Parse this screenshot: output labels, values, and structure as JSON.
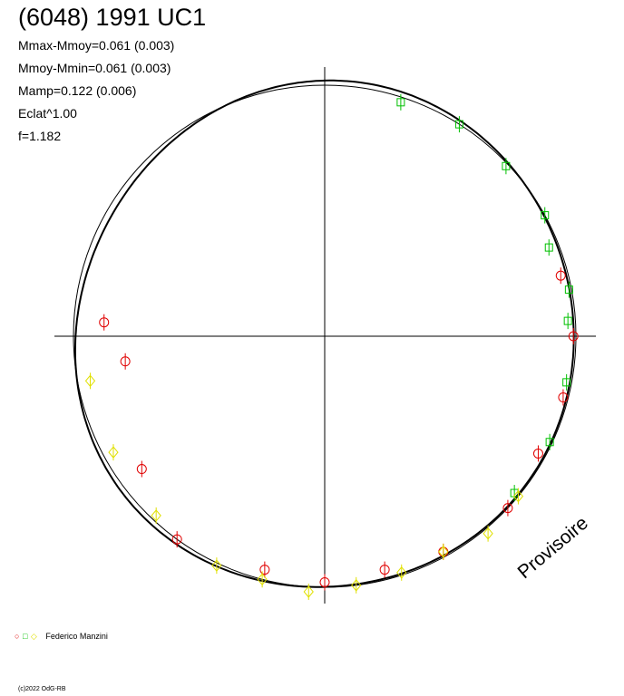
{
  "header": {
    "title": "(6048) 1991 UC1",
    "stats": [
      "Mmax-Mmoy=0.061 (0.003)",
      "Mmoy-Mmin=0.061 (0.003)",
      "Mamp=0.122 (0.006)",
      "Eclat^1.00",
      "f=1.182"
    ]
  },
  "watermark": "Provisoire",
  "legend": {
    "symbols": [
      "○",
      "□",
      "◇"
    ],
    "author": "Federico Manzini"
  },
  "footer": {
    "copyright": "(c)2022 OdG-RB"
  },
  "colors": {
    "red": "#e00000",
    "green": "#00c000",
    "yellow": "#ffff00",
    "axis": "#000000"
  },
  "chart_data": {
    "type": "scatter",
    "plot_kind": "polar phased lightcurve",
    "grid": false,
    "frequency": 1.182,
    "amplitude": 0.122,
    "series": [
      {
        "symbol": "circle",
        "color": "red",
        "points": [
          [
            0.76,
            0.88
          ],
          [
            0.73,
            0.8
          ],
          [
            0.65,
            0.9
          ],
          [
            0.6,
            1.0
          ],
          [
            0.54,
            0.96
          ],
          [
            0.5,
            0.98
          ],
          [
            0.46,
            0.96
          ],
          [
            0.42,
            0.98
          ],
          [
            0.37,
            1.0
          ],
          [
            0.33,
            0.97
          ],
          [
            0.29,
            0.98
          ],
          [
            0.25,
            0.99
          ],
          [
            0.21,
            0.97
          ]
        ]
      },
      {
        "symbol": "square",
        "color": "green",
        "points": [
          [
            0.05,
            0.98
          ],
          [
            0.09,
            1.0
          ],
          [
            0.13,
            0.99
          ],
          [
            0.17,
            1.0
          ],
          [
            0.19,
            0.96
          ],
          [
            0.22,
            0.99
          ],
          [
            0.24,
            0.97
          ],
          [
            0.28,
            0.98
          ],
          [
            0.32,
            0.99
          ],
          [
            0.36,
            0.98
          ]
        ]
      },
      {
        "symbol": "diamond",
        "color": "yellow",
        "points": [
          [
            0.36,
            1.0
          ],
          [
            0.39,
            1.02
          ],
          [
            0.42,
            0.98
          ],
          [
            0.45,
            0.99
          ],
          [
            0.48,
            1.0
          ],
          [
            0.51,
            1.02
          ],
          [
            0.54,
            1.0
          ],
          [
            0.57,
            1.01
          ],
          [
            0.62,
            0.98
          ],
          [
            0.67,
            0.96
          ],
          [
            0.72,
            0.95
          ]
        ]
      }
    ]
  }
}
